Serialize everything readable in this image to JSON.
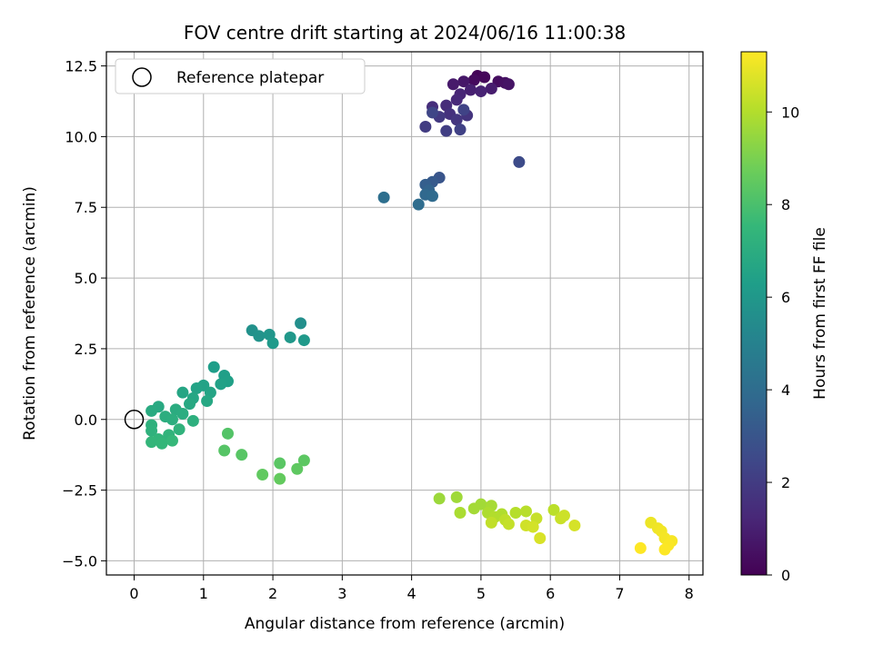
{
  "chart_data": {
    "type": "scatter",
    "title": "FOV centre drift starting at 2024/06/16 11:00:38",
    "xlabel": "Angular distance from reference (arcmin)",
    "ylabel": "Rotation from reference (arcmin)",
    "xlim": [
      -0.4,
      8.2
    ],
    "ylim": [
      -5.5,
      13.0
    ],
    "xticks": [
      0,
      1,
      2,
      3,
      4,
      5,
      6,
      7,
      8
    ],
    "xtick_labels": [
      "0",
      "1",
      "2",
      "3",
      "4",
      "5",
      "6",
      "7",
      "8"
    ],
    "yticks": [
      -5.0,
      -2.5,
      0.0,
      2.5,
      5.0,
      7.5,
      10.0,
      12.5
    ],
    "ytick_labels": [
      "−5.0",
      "−2.5",
      "0.0",
      "2.5",
      "5.0",
      "7.5",
      "10.0",
      "12.5"
    ],
    "grid": true,
    "legend": {
      "placement": "top-left",
      "label": "Reference platepar",
      "marker": "open-circle"
    },
    "reference_point": {
      "x": 0,
      "y": 0
    },
    "colorbar": {
      "label": "Hours from first FF file",
      "colormap": "viridis",
      "range": [
        0,
        11.3
      ],
      "ticks": [
        0,
        2,
        4,
        6,
        8,
        10
      ],
      "tick_labels": [
        "0",
        "2",
        "4",
        "6",
        "8",
        "10"
      ],
      "colors": [
        "#440154",
        "#482878",
        "#3e4989",
        "#31688e",
        "#26828e",
        "#1f9e89",
        "#35b779",
        "#6ece58",
        "#b5de2b",
        "#fde725"
      ]
    },
    "points": [
      {
        "x": 4.95,
        "y": 12.15,
        "h": 0.1
      },
      {
        "x": 5.05,
        "y": 12.1,
        "h": 0.2
      },
      {
        "x": 4.9,
        "y": 12.0,
        "h": 0.3
      },
      {
        "x": 5.25,
        "y": 11.95,
        "h": 0.4
      },
      {
        "x": 5.35,
        "y": 11.9,
        "h": 0.5
      },
      {
        "x": 5.4,
        "y": 11.85,
        "h": 0.6
      },
      {
        "x": 4.75,
        "y": 11.95,
        "h": 0.7
      },
      {
        "x": 4.6,
        "y": 11.85,
        "h": 0.8
      },
      {
        "x": 5.15,
        "y": 11.7,
        "h": 0.9
      },
      {
        "x": 4.85,
        "y": 11.65,
        "h": 1.0
      },
      {
        "x": 5.0,
        "y": 11.6,
        "h": 1.1
      },
      {
        "x": 4.7,
        "y": 11.5,
        "h": 1.2
      },
      {
        "x": 4.65,
        "y": 11.3,
        "h": 1.3
      },
      {
        "x": 4.5,
        "y": 11.1,
        "h": 1.4
      },
      {
        "x": 4.3,
        "y": 11.05,
        "h": 1.5
      },
      {
        "x": 4.55,
        "y": 10.8,
        "h": 1.6
      },
      {
        "x": 4.8,
        "y": 10.75,
        "h": 1.7
      },
      {
        "x": 4.65,
        "y": 10.6,
        "h": 1.8
      },
      {
        "x": 4.4,
        "y": 10.7,
        "h": 1.9
      },
      {
        "x": 4.2,
        "y": 10.35,
        "h": 2.0
      },
      {
        "x": 4.5,
        "y": 10.2,
        "h": 2.1
      },
      {
        "x": 4.7,
        "y": 10.25,
        "h": 2.2
      },
      {
        "x": 4.75,
        "y": 10.95,
        "h": 2.3
      },
      {
        "x": 4.3,
        "y": 10.85,
        "h": 2.4
      },
      {
        "x": 5.55,
        "y": 9.1,
        "h": 2.6
      },
      {
        "x": 4.4,
        "y": 8.55,
        "h": 3.0
      },
      {
        "x": 4.3,
        "y": 8.4,
        "h": 3.2
      },
      {
        "x": 4.2,
        "y": 8.3,
        "h": 3.4
      },
      {
        "x": 4.25,
        "y": 8.1,
        "h": 3.6
      },
      {
        "x": 4.2,
        "y": 7.95,
        "h": 3.8
      },
      {
        "x": 4.3,
        "y": 7.9,
        "h": 3.9
      },
      {
        "x": 4.1,
        "y": 7.6,
        "h": 4.0
      },
      {
        "x": 3.6,
        "y": 7.85,
        "h": 4.1
      },
      {
        "x": 2.4,
        "y": 3.4,
        "h": 5.6
      },
      {
        "x": 1.7,
        "y": 3.15,
        "h": 5.7
      },
      {
        "x": 1.8,
        "y": 2.95,
        "h": 5.8
      },
      {
        "x": 1.95,
        "y": 3.0,
        "h": 5.9
      },
      {
        "x": 2.25,
        "y": 2.9,
        "h": 6.0
      },
      {
        "x": 2.45,
        "y": 2.8,
        "h": 6.05
      },
      {
        "x": 2.0,
        "y": 2.7,
        "h": 6.1
      },
      {
        "x": 1.15,
        "y": 1.85,
        "h": 6.3
      },
      {
        "x": 1.3,
        "y": 1.55,
        "h": 6.35
      },
      {
        "x": 1.35,
        "y": 1.35,
        "h": 6.4
      },
      {
        "x": 1.25,
        "y": 1.25,
        "h": 6.45
      },
      {
        "x": 1.0,
        "y": 1.2,
        "h": 6.5
      },
      {
        "x": 0.9,
        "y": 1.1,
        "h": 6.55
      },
      {
        "x": 1.1,
        "y": 0.95,
        "h": 6.6
      },
      {
        "x": 0.7,
        "y": 0.95,
        "h": 6.65
      },
      {
        "x": 0.85,
        "y": 0.75,
        "h": 6.7
      },
      {
        "x": 1.05,
        "y": 0.65,
        "h": 6.75
      },
      {
        "x": 0.8,
        "y": 0.55,
        "h": 6.8
      },
      {
        "x": 0.35,
        "y": 0.45,
        "h": 6.85
      },
      {
        "x": 0.25,
        "y": 0.3,
        "h": 6.9
      },
      {
        "x": 0.6,
        "y": 0.35,
        "h": 6.95
      },
      {
        "x": 0.7,
        "y": 0.2,
        "h": 7.0
      },
      {
        "x": 0.45,
        "y": 0.1,
        "h": 7.05
      },
      {
        "x": 0.55,
        "y": 0.0,
        "h": 7.1
      },
      {
        "x": 0.85,
        "y": -0.05,
        "h": 7.15
      },
      {
        "x": 0.25,
        "y": -0.2,
        "h": 7.2
      },
      {
        "x": 0.25,
        "y": -0.4,
        "h": 7.25
      },
      {
        "x": 0.65,
        "y": -0.35,
        "h": 7.3
      },
      {
        "x": 0.5,
        "y": -0.55,
        "h": 7.35
      },
      {
        "x": 0.35,
        "y": -0.7,
        "h": 7.4
      },
      {
        "x": 0.25,
        "y": -0.8,
        "h": 7.45
      },
      {
        "x": 0.4,
        "y": -0.85,
        "h": 7.5
      },
      {
        "x": 0.55,
        "y": -0.75,
        "h": 7.55
      },
      {
        "x": 1.35,
        "y": -0.5,
        "h": 8.2
      },
      {
        "x": 1.3,
        "y": -1.1,
        "h": 8.25
      },
      {
        "x": 1.55,
        "y": -1.25,
        "h": 8.3
      },
      {
        "x": 2.1,
        "y": -1.55,
        "h": 8.35
      },
      {
        "x": 2.45,
        "y": -1.45,
        "h": 8.4
      },
      {
        "x": 2.35,
        "y": -1.75,
        "h": 8.45
      },
      {
        "x": 1.85,
        "y": -1.95,
        "h": 8.5
      },
      {
        "x": 2.1,
        "y": -2.1,
        "h": 8.55
      },
      {
        "x": 4.4,
        "y": -2.8,
        "h": 9.6
      },
      {
        "x": 4.65,
        "y": -2.75,
        "h": 9.65
      },
      {
        "x": 5.0,
        "y": -3.0,
        "h": 9.7
      },
      {
        "x": 4.9,
        "y": -3.15,
        "h": 9.75
      },
      {
        "x": 5.15,
        "y": -3.05,
        "h": 9.8
      },
      {
        "x": 4.7,
        "y": -3.3,
        "h": 9.85
      },
      {
        "x": 5.1,
        "y": -3.3,
        "h": 9.9
      },
      {
        "x": 5.3,
        "y": -3.35,
        "h": 9.95
      },
      {
        "x": 5.2,
        "y": -3.45,
        "h": 10.0
      },
      {
        "x": 5.5,
        "y": -3.3,
        "h": 10.05
      },
      {
        "x": 5.65,
        "y": -3.25,
        "h": 10.1
      },
      {
        "x": 6.05,
        "y": -3.2,
        "h": 10.15
      },
      {
        "x": 5.35,
        "y": -3.55,
        "h": 10.2
      },
      {
        "x": 5.15,
        "y": -3.65,
        "h": 10.25
      },
      {
        "x": 5.4,
        "y": -3.7,
        "h": 10.3
      },
      {
        "x": 5.8,
        "y": -3.5,
        "h": 10.35
      },
      {
        "x": 6.15,
        "y": -3.5,
        "h": 10.4
      },
      {
        "x": 6.2,
        "y": -3.4,
        "h": 10.45
      },
      {
        "x": 5.65,
        "y": -3.75,
        "h": 10.5
      },
      {
        "x": 5.75,
        "y": -3.8,
        "h": 10.55
      },
      {
        "x": 6.35,
        "y": -3.75,
        "h": 10.6
      },
      {
        "x": 5.85,
        "y": -4.2,
        "h": 10.65
      },
      {
        "x": 7.45,
        "y": -3.65,
        "h": 11.0
      },
      {
        "x": 7.55,
        "y": -3.85,
        "h": 11.05
      },
      {
        "x": 7.6,
        "y": -3.95,
        "h": 11.1
      },
      {
        "x": 7.65,
        "y": -4.2,
        "h": 11.15
      },
      {
        "x": 7.75,
        "y": -4.3,
        "h": 11.2
      },
      {
        "x": 7.7,
        "y": -4.45,
        "h": 11.25
      },
      {
        "x": 7.65,
        "y": -4.6,
        "h": 11.28
      },
      {
        "x": 7.3,
        "y": -4.55,
        "h": 11.3
      }
    ]
  }
}
